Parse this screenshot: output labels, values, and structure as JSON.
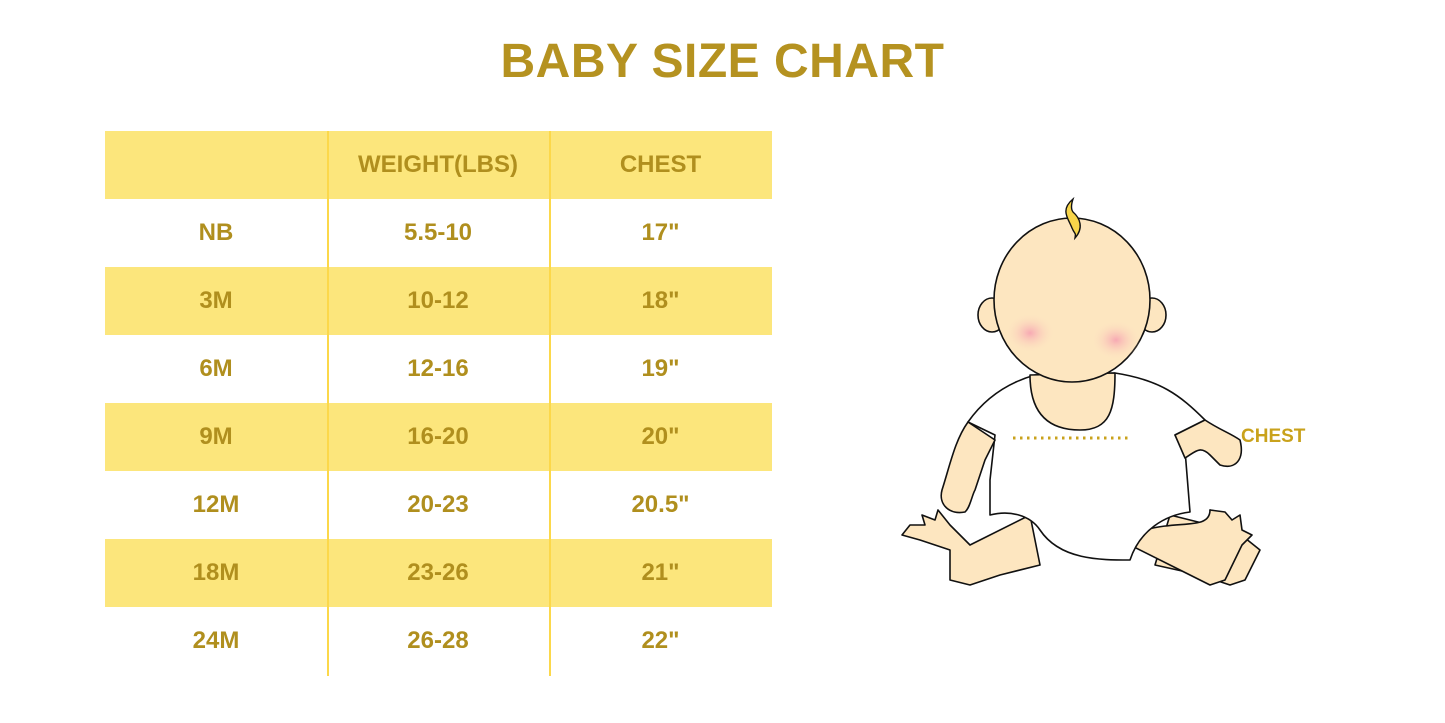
{
  "title": "BABY SIZE CHART",
  "table": {
    "headers": [
      "",
      "WEIGHT(LBS)",
      "CHEST"
    ],
    "rows": [
      [
        "NB",
        "5.5-10",
        "17\""
      ],
      [
        "3M",
        "10-12",
        "18\""
      ],
      [
        "6M",
        "12-16",
        "19\""
      ],
      [
        "9M",
        "16-20",
        "20\""
      ],
      [
        "12M",
        "20-23",
        "20.5\""
      ],
      [
        "18M",
        "23-26",
        "21\""
      ],
      [
        "24M",
        "26-28",
        "22\""
      ]
    ]
  },
  "illustration": {
    "chest_label": "CHEST"
  },
  "colors": {
    "text": "#b08f1e",
    "stripe": "#fce67c",
    "skin": "#fde6c0",
    "cheek": "#f7b2b8"
  }
}
